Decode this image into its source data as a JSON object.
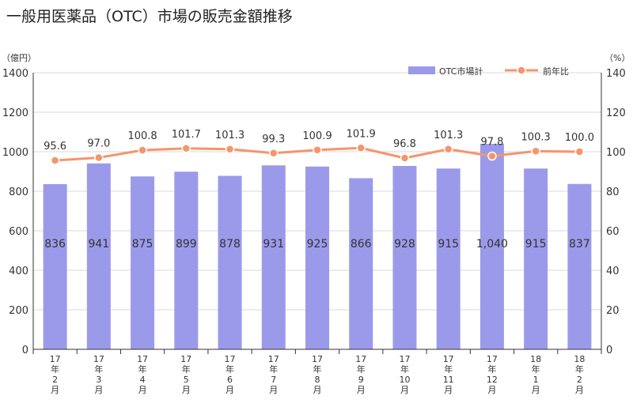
{
  "title": "一般用医薬品（OTC）市場の販売金額推移",
  "chart_data": {
    "type": "bar",
    "title": "一般用医薬品（OTC）市場の販売金額推移",
    "ylabel_left": "（億円）",
    "ylabel_right": "（%）",
    "ylim_left": [
      0,
      1400
    ],
    "ylim_right": [
      0,
      140
    ],
    "yticks_left": [
      "0",
      "200",
      "400",
      "600",
      "800",
      "1000",
      "1200",
      "1400"
    ],
    "yticks_right": [
      "0",
      "20",
      "40",
      "60",
      "80",
      "100",
      "120",
      "140"
    ],
    "categories": [
      [
        "17",
        "年",
        "2",
        "月"
      ],
      [
        "17",
        "年",
        "3",
        "月"
      ],
      [
        "17",
        "年",
        "4",
        "月"
      ],
      [
        "17",
        "年",
        "5",
        "月"
      ],
      [
        "17",
        "年",
        "6",
        "月"
      ],
      [
        "17",
        "年",
        "7",
        "月"
      ],
      [
        "17",
        "年",
        "8",
        "月"
      ],
      [
        "17",
        "年",
        "9",
        "月"
      ],
      [
        "17",
        "年",
        "10",
        "月"
      ],
      [
        "17",
        "年",
        "11",
        "月"
      ],
      [
        "17",
        "年",
        "12",
        "月"
      ],
      [
        "18",
        "年",
        "1",
        "月"
      ],
      [
        "18",
        "年",
        "2",
        "月"
      ]
    ],
    "series": [
      {
        "name": "OTC市場計",
        "type": "bar",
        "axis": "left",
        "values": [
          836,
          941,
          875,
          899,
          878,
          931,
          925,
          866,
          928,
          915,
          1040,
          915,
          837
        ],
        "labels": [
          "836",
          "941",
          "875",
          "899",
          "878",
          "931",
          "925",
          "866",
          "928",
          "915",
          "1,040",
          "915",
          "837"
        ]
      },
      {
        "name": "前年比",
        "type": "line",
        "axis": "right",
        "values": [
          95.6,
          97.0,
          100.8,
          101.7,
          101.3,
          99.3,
          100.9,
          101.9,
          96.8,
          101.3,
          97.8,
          100.3,
          100.0
        ],
        "labels": [
          "95.6",
          "97.0",
          "100.8",
          "101.7",
          "101.3",
          "99.3",
          "100.9",
          "101.9",
          "96.8",
          "101.3",
          "97.8",
          "100.3",
          "100.0"
        ]
      }
    ],
    "legend_position": "top-right",
    "grid": true,
    "colors": {
      "bar": "#9b9aea",
      "line": "#f5956b",
      "grid": "#d9d9d9",
      "axis": "#333333"
    }
  }
}
